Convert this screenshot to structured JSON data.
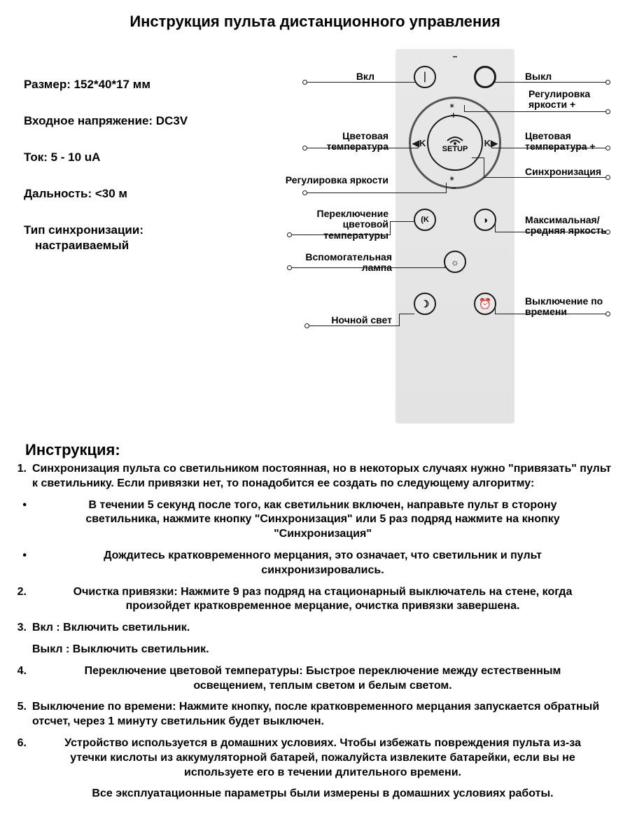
{
  "title": "Инструкция пульта дистанционного управления",
  "specs": [
    {
      "text": "Размер: 152*40*17 мм"
    },
    {
      "text": "Входное напряжение: DC3V"
    },
    {
      "text": "Ток: 5 - 10 uA"
    },
    {
      "text": "Дальность: <30 м"
    },
    {
      "text": "Тип синхронизации:",
      "sub": "настраиваемый"
    }
  ],
  "diagram": {
    "remote_bg": "#e6e6e6",
    "setup_label": "SETUP",
    "buttons": {
      "on": {
        "glyph": "⏻"
      },
      "off": {
        "glyph": "◯"
      },
      "plus": {
        "glyph": "+"
      },
      "minus": {
        "glyph": "−"
      },
      "k_left": {
        "glyph": "◀K"
      },
      "k_right": {
        "glyph": "K▶"
      },
      "color_temp_switch": {
        "glyph": "◐"
      },
      "brightness_toggle": {
        "glyph": "◑"
      },
      "aux_lamp": {
        "glyph": "☀"
      },
      "night": {
        "glyph": "☽"
      },
      "timer": {
        "glyph": "⏰"
      }
    },
    "callouts": {
      "on": "Вкл",
      "off": "Выкл",
      "brightness_up": "Регулировка яркости +",
      "color_temp": "Цветовая температура",
      "color_temp_plus": "Цветовая температура +",
      "brightness": "Регулировка яркости",
      "sync": "Синхронизация",
      "color_temp_switch": "Переключение цветовой температуры",
      "brightness_toggle": "Максимальная/ средняя яркость",
      "aux_lamp": "Вспомогательная лампа",
      "night": "Ночной свет",
      "timer": "Выключение по времени"
    }
  },
  "instructions_title": "Инструкция:",
  "instructions": [
    {
      "num": "1.",
      "text": "Синхронизация пульта со светильником постоянная, но в некоторых случаях нужно \"привязать\" пульт к светильнику. Если привязки нет, то понадобится ее создать по следующему алгоритму:"
    },
    {
      "num": "•",
      "center": true,
      "text": "В течении 5 секунд после того, как светильник включен, направьте пульт в сторону светильника, нажмите кнопку \"Синхронизация\" или 5 раз подряд нажмите на кнопку \"Синхронизация\""
    },
    {
      "num": "•",
      "center": true,
      "text": "Дождитесь кратковременного мерцания, это означает, что светильник и пульт синхронизировались."
    },
    {
      "num": "2.",
      "center": true,
      "text": "Очистка привязки:  Нажмите 9 раз подряд на стационарный выключатель на стене, когда произойдет кратковременное мерцание, очистка привязки завершена."
    },
    {
      "num": "3.",
      "text": "Вкл : Включить светильник."
    },
    {
      "num": "",
      "text": "Выкл  : Выключить светильник."
    },
    {
      "num": "4.",
      "center": true,
      "text": "Переключение цветовой температуры: Быстрое переключение между естественным освещением, теплым светом и белым светом."
    },
    {
      "num": "5.",
      "text": "Выключение по времени: Нажмите кнопку, после кратковременного мерцания запускается обратный отсчет, через 1 минуту светильник будет выключен."
    },
    {
      "num": "6.",
      "center": true,
      "text": "Устройство используется в домашних условиях. Чтобы избежать повреждения пульта из-за утечки кислоты из аккумуляторной батарей, пожалуйста извлеките батарейки, если вы не используете его в течении длительного времени."
    },
    {
      "num": "",
      "center": true,
      "text": "Все эксплуатационные параметры были измерены в домашних условиях работы."
    }
  ]
}
